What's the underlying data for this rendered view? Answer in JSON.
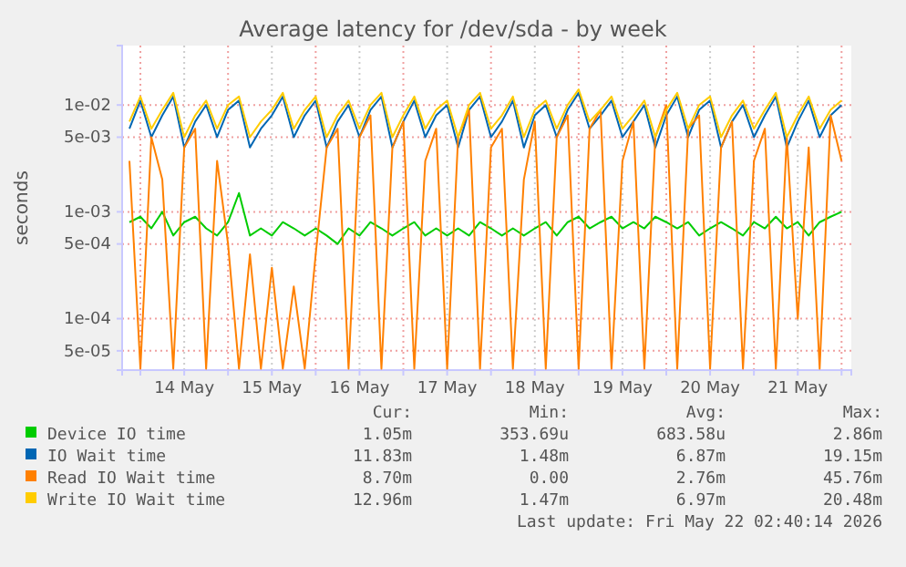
{
  "chart_data": {
    "type": "line",
    "title": "Average latency for /dev/sda - by week",
    "ylabel": "seconds",
    "log": "y",
    "grid": true,
    "legend": "bottom",
    "xlim": [
      "2026-05-13T19:00",
      "2026-05-22T02:40"
    ],
    "xticks": [
      {
        "value": "2026-05-14T00:00",
        "label": null
      },
      {
        "value": "2026-05-14T12:00",
        "label": "14 May"
      },
      {
        "value": "2026-05-15T00:00",
        "label": null
      },
      {
        "value": "2026-05-15T12:00",
        "label": "15 May"
      },
      {
        "value": "2026-05-16T00:00",
        "label": null
      },
      {
        "value": "2026-05-16T12:00",
        "label": "16 May"
      },
      {
        "value": "2026-05-17T00:00",
        "label": null
      },
      {
        "value": "2026-05-17T12:00",
        "label": "17 May"
      },
      {
        "value": "2026-05-18T00:00",
        "label": null
      },
      {
        "value": "2026-05-18T12:00",
        "label": "18 May"
      },
      {
        "value": "2026-05-19T00:00",
        "label": null
      },
      {
        "value": "2026-05-19T12:00",
        "label": "19 May"
      },
      {
        "value": "2026-05-20T00:00",
        "label": null
      },
      {
        "value": "2026-05-20T12:00",
        "label": "20 May"
      },
      {
        "value": "2026-05-21T00:00",
        "label": null
      },
      {
        "value": "2026-05-21T12:00",
        "label": "21 May"
      },
      {
        "value": "2026-05-22T00:00",
        "label": null
      }
    ],
    "ylim": [
      3.3e-05,
      0.036
    ],
    "yticks": [
      {
        "value": 5e-05,
        "label": "5e-05"
      },
      {
        "value": 0.0001,
        "label": "1e-04"
      },
      {
        "value": 0.0005,
        "label": "5e-04"
      },
      {
        "value": 0.001,
        "label": "1e-03"
      },
      {
        "value": 0.005,
        "label": "5e-03"
      },
      {
        "value": 0.01,
        "label": "1e-02"
      }
    ],
    "x": [
      "2026-05-13T21:00",
      "2026-05-14T00:00",
      "2026-05-14T03:00",
      "2026-05-14T06:00",
      "2026-05-14T09:00",
      "2026-05-14T12:00",
      "2026-05-14T15:00",
      "2026-05-14T18:00",
      "2026-05-14T21:00",
      "2026-05-15T00:00",
      "2026-05-15T03:00",
      "2026-05-15T06:00",
      "2026-05-15T09:00",
      "2026-05-15T12:00",
      "2026-05-15T15:00",
      "2026-05-15T18:00",
      "2026-05-15T21:00",
      "2026-05-16T00:00",
      "2026-05-16T03:00",
      "2026-05-16T06:00",
      "2026-05-16T09:00",
      "2026-05-16T12:00",
      "2026-05-16T15:00",
      "2026-05-16T18:00",
      "2026-05-16T21:00",
      "2026-05-17T00:00",
      "2026-05-17T03:00",
      "2026-05-17T06:00",
      "2026-05-17T09:00",
      "2026-05-17T12:00",
      "2026-05-17T15:00",
      "2026-05-17T18:00",
      "2026-05-17T21:00",
      "2026-05-18T00:00",
      "2026-05-18T03:00",
      "2026-05-18T06:00",
      "2026-05-18T09:00",
      "2026-05-18T12:00",
      "2026-05-18T15:00",
      "2026-05-18T18:00",
      "2026-05-18T21:00",
      "2026-05-19T00:00",
      "2026-05-19T03:00",
      "2026-05-19T06:00",
      "2026-05-19T09:00",
      "2026-05-19T12:00",
      "2026-05-19T15:00",
      "2026-05-19T18:00",
      "2026-05-19T21:00",
      "2026-05-20T00:00",
      "2026-05-20T03:00",
      "2026-05-20T06:00",
      "2026-05-20T09:00",
      "2026-05-20T12:00",
      "2026-05-20T15:00",
      "2026-05-20T18:00",
      "2026-05-20T21:00",
      "2026-05-21T00:00",
      "2026-05-21T03:00",
      "2026-05-21T06:00",
      "2026-05-21T09:00",
      "2026-05-21T12:00",
      "2026-05-21T15:00",
      "2026-05-21T18:00",
      "2026-05-21T21:00",
      "2026-05-22T00:00"
    ],
    "series": [
      {
        "name": "Device IO time",
        "color": "#00cc00",
        "values": [
          0.0008,
          0.0009,
          0.0007,
          0.001,
          0.0006,
          0.0008,
          0.0009,
          0.0007,
          0.0006,
          0.0008,
          0.0015,
          0.0006,
          0.0007,
          0.0006,
          0.0008,
          0.0007,
          0.0006,
          0.0007,
          0.0006,
          0.0005,
          0.0007,
          0.0006,
          0.0008,
          0.0007,
          0.0006,
          0.0007,
          0.0008,
          0.0006,
          0.0007,
          0.0006,
          0.0007,
          0.0006,
          0.0008,
          0.0007,
          0.0006,
          0.0007,
          0.0006,
          0.0007,
          0.0008,
          0.0006,
          0.0008,
          0.0009,
          0.0007,
          0.0008,
          0.0009,
          0.0007,
          0.0008,
          0.0007,
          0.0009,
          0.0008,
          0.0007,
          0.0008,
          0.0006,
          0.0007,
          0.0008,
          0.0007,
          0.0006,
          0.0008,
          0.0007,
          0.0009,
          0.0007,
          0.0008,
          0.0006,
          0.0008,
          0.0009,
          0.001
        ]
      },
      {
        "name": "IO Wait time",
        "color": "#0066b3",
        "values": [
          0.006,
          0.011,
          0.005,
          0.008,
          0.012,
          0.004,
          0.007,
          0.01,
          0.005,
          0.009,
          0.011,
          0.004,
          0.006,
          0.008,
          0.012,
          0.005,
          0.008,
          0.011,
          0.004,
          0.007,
          0.01,
          0.005,
          0.009,
          0.012,
          0.004,
          0.007,
          0.011,
          0.005,
          0.008,
          0.01,
          0.004,
          0.009,
          0.012,
          0.005,
          0.007,
          0.011,
          0.004,
          0.008,
          0.01,
          0.005,
          0.009,
          0.013,
          0.006,
          0.008,
          0.011,
          0.005,
          0.007,
          0.01,
          0.004,
          0.008,
          0.012,
          0.005,
          0.009,
          0.011,
          0.004,
          0.007,
          0.01,
          0.005,
          0.008,
          0.012,
          0.004,
          0.007,
          0.011,
          0.005,
          0.008,
          0.01
        ]
      },
      {
        "name": "Read IO Wait time",
        "color": "#ff8000",
        "values": [
          0.003,
          3.4e-05,
          0.005,
          0.002,
          3.4e-05,
          0.004,
          0.006,
          3.4e-05,
          0.003,
          0.0005,
          3.4e-05,
          0.0004,
          3.4e-05,
          0.0003,
          3.4e-05,
          0.0002,
          3.4e-05,
          0.0004,
          0.004,
          0.006,
          3.4e-05,
          0.005,
          0.008,
          3.4e-05,
          0.004,
          0.007,
          3.4e-05,
          0.003,
          0.006,
          3.4e-05,
          0.005,
          0.009,
          3.4e-05,
          0.004,
          0.006,
          3.4e-05,
          0.002,
          0.007,
          3.4e-05,
          0.005,
          0.008,
          3.4e-05,
          0.006,
          0.009,
          3.4e-05,
          0.003,
          0.007,
          3.4e-05,
          0.005,
          0.01,
          3.4e-05,
          0.006,
          0.008,
          3.4e-05,
          0.004,
          0.007,
          3.4e-05,
          0.003,
          0.006,
          3.4e-05,
          0.005,
          0.0001,
          0.004,
          3.4e-05,
          0.008,
          0.003
        ]
      },
      {
        "name": "Write IO Wait time",
        "color": "#ffcc00",
        "values": [
          0.007,
          0.012,
          0.006,
          0.009,
          0.013,
          0.005,
          0.008,
          0.011,
          0.006,
          0.01,
          0.012,
          0.005,
          0.007,
          0.009,
          0.013,
          0.006,
          0.009,
          0.012,
          0.005,
          0.008,
          0.011,
          0.006,
          0.01,
          0.013,
          0.005,
          0.008,
          0.012,
          0.006,
          0.009,
          0.011,
          0.005,
          0.01,
          0.013,
          0.006,
          0.008,
          0.012,
          0.005,
          0.009,
          0.011,
          0.006,
          0.01,
          0.014,
          0.007,
          0.009,
          0.012,
          0.006,
          0.008,
          0.011,
          0.005,
          0.009,
          0.013,
          0.006,
          0.01,
          0.012,
          0.005,
          0.008,
          0.011,
          0.006,
          0.009,
          0.013,
          0.005,
          0.008,
          0.012,
          0.006,
          0.009,
          0.011
        ]
      }
    ],
    "annotations": [
      "Cur:",
      "Min:",
      "Avg:",
      "Max:",
      "1.05m",
      "353.69u",
      "683.58u",
      "2.86m",
      "11.83m",
      "1.48m",
      "6.87m",
      "19.15m",
      "8.70m",
      "0.00",
      "2.76m",
      "45.76m",
      "12.96m",
      "1.47m",
      "6.97m",
      "20.48m",
      "Last update: Fri May 22 02:40:14 2026"
    ]
  }
}
